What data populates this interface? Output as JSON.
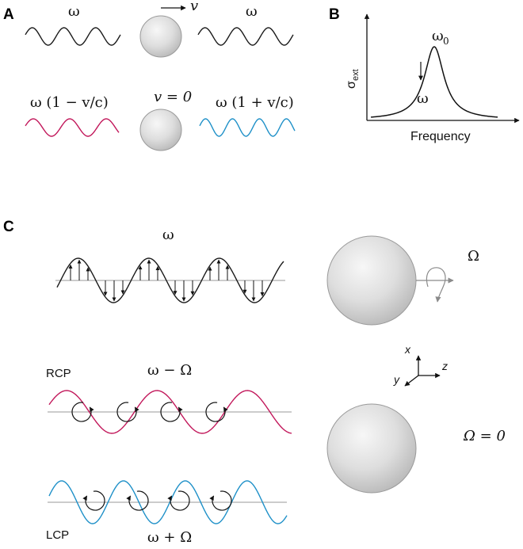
{
  "colors": {
    "black_wave": "#1a1a1a",
    "red_wave": "#c2185b",
    "blue_wave": "#1e90c8",
    "sphere_fill_light": "#f4f4f4",
    "sphere_fill_dark": "#bdbdbd",
    "sphere_edge": "#9a9a9a",
    "axis_line_gray": "#999999"
  },
  "panelA": {
    "label": "A",
    "omega_left": "ω",
    "omega_right": "ω",
    "velocity": "v",
    "v_zero": "v = 0",
    "redshift": "ω (1 − v/c)",
    "blueshift": "ω (1 + v/c)"
  },
  "panelB": {
    "label": "B",
    "ylabel_main": "σ",
    "ylabel_sub": "ext",
    "xlabel": "Frequency",
    "peak_label_main": "ω",
    "peak_label_sub": "0",
    "probe_label": "ω"
  },
  "panelC": {
    "label": "C",
    "omega_top": "ω",
    "rotation_label": "Ω",
    "rcp_label": "RCP",
    "rcp_freq": "ω − Ω",
    "lcp_label": "LCP",
    "lcp_freq": "ω + Ω",
    "omega_zero": "Ω = 0",
    "axis_x": "x",
    "axis_y": "y",
    "axis_z": "z"
  }
}
